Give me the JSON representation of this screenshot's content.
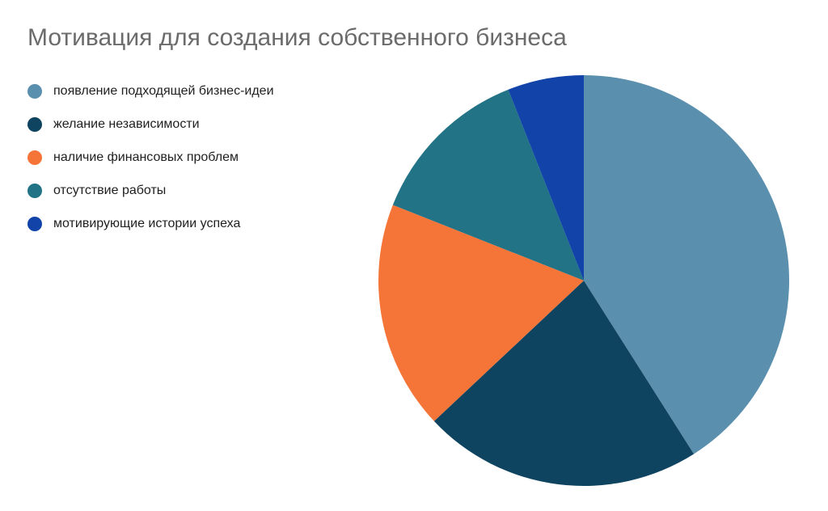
{
  "chart_data": {
    "type": "pie",
    "title": "Мотивация для создания собственного бизнеса",
    "legend_position": "left",
    "start_angle_deg": 0,
    "direction": "clockwise",
    "categories": [
      "появление подходящей бизнес-идеи",
      "желание независимости",
      "наличие финансовых проблем",
      "отсутствие работы",
      "мотивирующие истории успеха"
    ],
    "values": [
      41,
      22,
      18,
      13,
      6
    ],
    "colors": [
      "#5b8fae",
      "#0f4460",
      "#f57539",
      "#217385",
      "#1243a8"
    ]
  }
}
